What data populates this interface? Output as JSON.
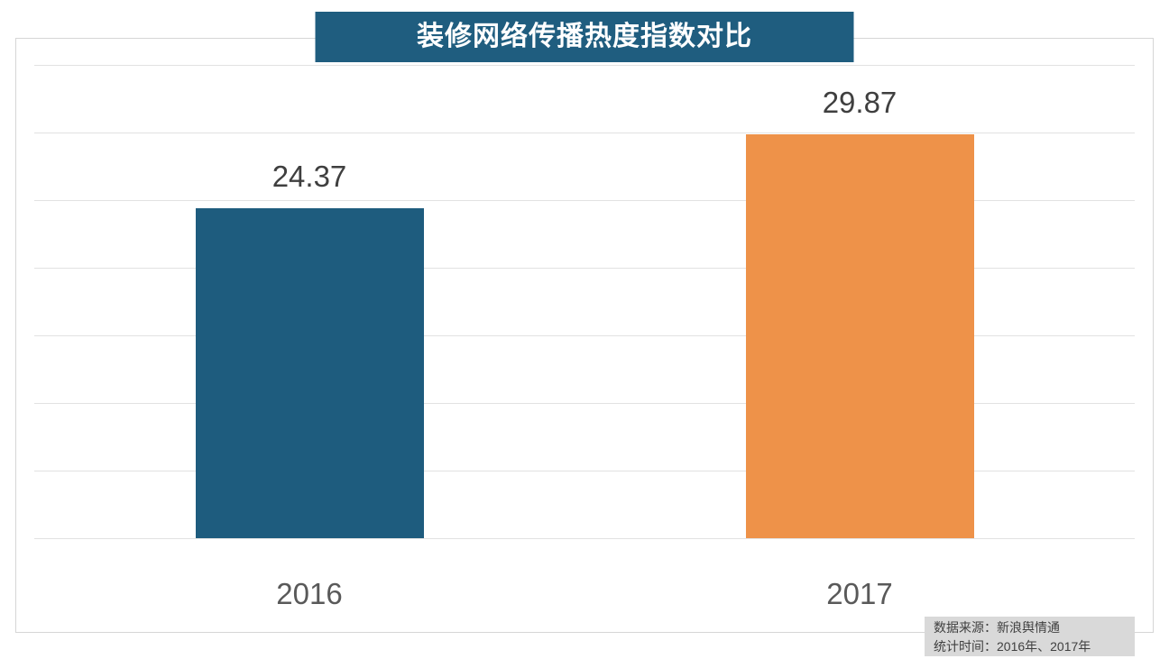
{
  "chart_data": {
    "type": "bar",
    "title": "装修网络传播热度指数对比",
    "categories": [
      "2016",
      "2017"
    ],
    "values": [
      24.37,
      29.87
    ],
    "value_labels": [
      "24.37",
      "29.87"
    ],
    "bar_colors": [
      "#1E5C7E",
      "#EE9249"
    ],
    "xlabel": "",
    "ylabel": "",
    "ylim": [
      0,
      35
    ],
    "grid_interval": 5,
    "grid": "horizontal",
    "legend_position": "none",
    "y_tick_labels_visible": false
  },
  "source": {
    "line1": "数据来源：新浪舆情通",
    "line2": "统计时间：2016年、2017年"
  },
  "colors": {
    "background": "#FFFFFF",
    "title_bg": "#1F5D7F",
    "title_text": "#FFFFFF",
    "grid_line": "#E2E2E2",
    "frame_border": "#D6D6D6",
    "value_label": "#3F3F3F",
    "category_label": "#595959",
    "source_bg": "#D9D9D9",
    "source_text": "#404040"
  }
}
